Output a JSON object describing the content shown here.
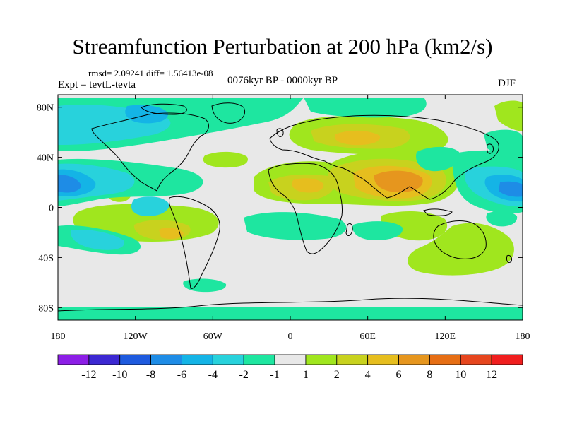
{
  "title": "Streamfunction Perturbation at 200 hPa (km2/s)",
  "stats_line": "rmsd= 2.09241 diff= 1.56413e-08",
  "expt_label": "Expt = tevtL-tevta",
  "period_label": "0076kyr BP - 0000kyr BP",
  "season_label": "DJF",
  "lat_ticks": [
    {
      "label": "80N",
      "value": 80
    },
    {
      "label": "40N",
      "value": 40
    },
    {
      "label": "0",
      "value": 0
    },
    {
      "label": "40S",
      "value": -40
    },
    {
      "label": "80S",
      "value": -80
    }
  ],
  "lon_ticks": [
    {
      "label": "180",
      "value": -180
    },
    {
      "label": "120W",
      "value": -120
    },
    {
      "label": "60W",
      "value": -60
    },
    {
      "label": "0",
      "value": 0
    },
    {
      "label": "60E",
      "value": 60
    },
    {
      "label": "120E",
      "value": 120
    },
    {
      "label": "180",
      "value": 180
    }
  ],
  "colorbar": {
    "colors": [
      "#8c1ee6",
      "#3c28d2",
      "#1e5ade",
      "#1e8ce6",
      "#14b4e6",
      "#28d2dc",
      "#1ee6a0",
      "#e8e8e8",
      "#a0e61e",
      "#c8d21e",
      "#e6be1e",
      "#e6961e",
      "#e66e14",
      "#e6461e",
      "#f01e1e"
    ],
    "labels": [
      "-12",
      "-10",
      "-8",
      "-6",
      "-4",
      "-2",
      "-1",
      "1",
      "2",
      "4",
      "6",
      "8",
      "10",
      "12"
    ]
  },
  "contours": {
    "colors": {
      "l1": "#a0e61e",
      "l2": "#c8d21e",
      "l3": "#e6be1e",
      "l4": "#e6961e",
      "n1": "#1ee6a0",
      "n2": "#28d2dc",
      "n3": "#14b4e6",
      "n4": "#1e8ce6"
    }
  }
}
